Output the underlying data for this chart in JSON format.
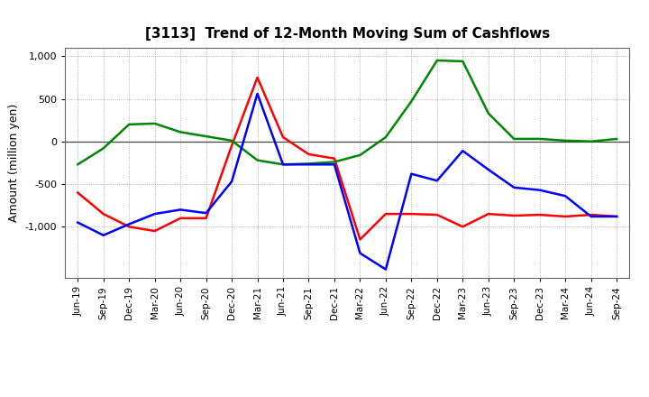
{
  "title": "[3113]  Trend of 12-Month Moving Sum of Cashflows",
  "ylabel": "Amount (million yen)",
  "x_labels": [
    "Jun-19",
    "Sep-19",
    "Dec-19",
    "Mar-20",
    "Jun-20",
    "Sep-20",
    "Dec-20",
    "Mar-21",
    "Jun-21",
    "Sep-21",
    "Dec-21",
    "Mar-22",
    "Jun-22",
    "Sep-22",
    "Dec-22",
    "Mar-23",
    "Jun-23",
    "Sep-23",
    "Dec-23",
    "Mar-24",
    "Jun-24",
    "Sep-24"
  ],
  "operating": [
    -600,
    -850,
    -1000,
    -1050,
    -900,
    -900,
    -50,
    750,
    50,
    -150,
    -200,
    -1150,
    -850,
    -850,
    -860,
    -1000,
    -850,
    -870,
    -860,
    -880,
    -860,
    -880
  ],
  "investing": [
    -270,
    -80,
    200,
    210,
    110,
    60,
    10,
    -220,
    -270,
    -260,
    -240,
    -160,
    50,
    470,
    950,
    940,
    330,
    30,
    30,
    10,
    0,
    30
  ],
  "free_cashflow": [
    -950,
    -1100,
    -970,
    -850,
    -800,
    -840,
    -470,
    560,
    -270,
    -270,
    -270,
    -1310,
    -1500,
    -380,
    -460,
    -110,
    -330,
    -540,
    -570,
    -640,
    -880,
    -880
  ],
  "ylim": [
    -1600,
    1100
  ],
  "yticks": [
    -1000,
    -500,
    0,
    500,
    1000
  ],
  "yticklabels": [
    "-1,000",
    "-500",
    "0",
    "500",
    "1,000"
  ],
  "colors": {
    "operating": "#ff0000",
    "investing": "#008800",
    "free_cashflow": "#0000ff"
  },
  "line_width": 1.8,
  "bg_color": "#ffffff",
  "grid_color": "#999999"
}
